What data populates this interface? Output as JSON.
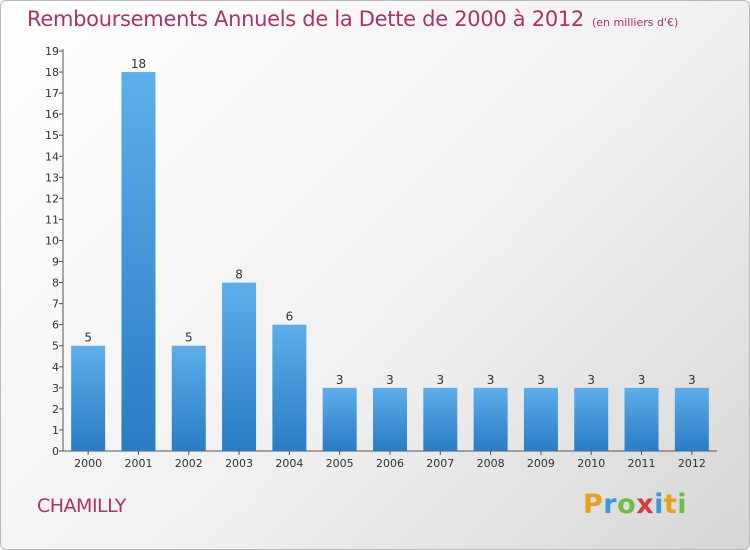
{
  "chart_data": {
    "type": "bar",
    "title": "Remboursements Annuels de la Dette de 2000 à 2012",
    "unit_note": "(en milliers d'€)",
    "categories": [
      "2000",
      "2001",
      "2002",
      "2003",
      "2004",
      "2005",
      "2006",
      "2007",
      "2008",
      "2009",
      "2010",
      "2011",
      "2012"
    ],
    "values": [
      5,
      18,
      5,
      8,
      6,
      3,
      3,
      3,
      3,
      3,
      3,
      3,
      3
    ],
    "ylim": [
      0,
      19
    ],
    "yticks": [
      "0",
      "1",
      "2",
      "3",
      "4",
      "5",
      "6",
      "7",
      "8",
      "9",
      "10",
      "11",
      "12",
      "13",
      "14",
      "15",
      "16",
      "17",
      "18",
      "19"
    ],
    "grid": false,
    "bar_color": "#4a9fe0"
  },
  "footer": {
    "city": "CHAMILLY",
    "logo": [
      "P",
      "r",
      "o",
      "x",
      "i",
      "t",
      "i"
    ],
    "logo_colors": [
      "#e8a020",
      "#3a9ad9",
      "#6fbe44",
      "#d43c3c",
      "#3a9ad9",
      "#e8a020",
      "#6fbe44"
    ]
  }
}
